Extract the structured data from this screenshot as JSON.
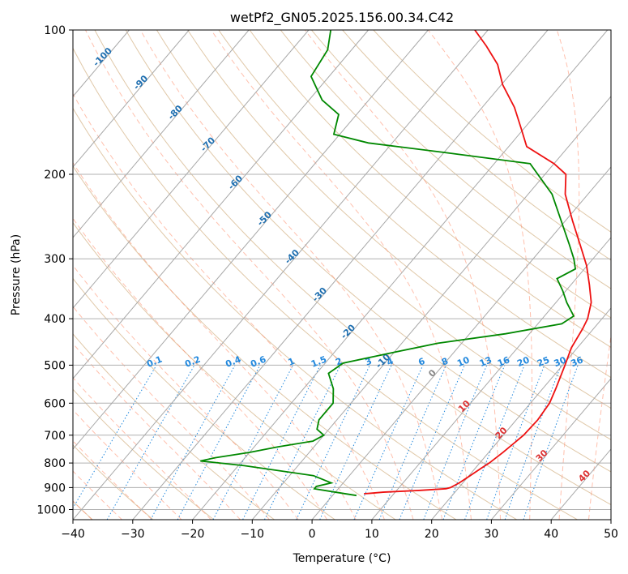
{
  "chart_data": {
    "type": "skew-t log-p",
    "title": "wetPf2_GN05.2025.156.00.34.C42",
    "xlabel": "Temperature (°C)",
    "ylabel": "Pressure (hPa)",
    "xlim": [
      -40,
      50
    ],
    "ylim_hpa": [
      1050,
      100
    ],
    "y_scale": "log",
    "grid": true,
    "x_ticks": [
      "−40",
      "−30",
      "−20",
      "−10",
      "0",
      "10",
      "20",
      "30",
      "40",
      "50"
    ],
    "y_ticks": [
      "100",
      "200",
      "300",
      "400",
      "500",
      "600",
      "700",
      "800",
      "900",
      "1000"
    ],
    "temperature": {
      "color": "#ee1111",
      "points": [
        [
          927,
          5
        ],
        [
          925,
          6
        ],
        [
          920,
          8
        ],
        [
          912,
          14
        ],
        [
          905,
          18
        ],
        [
          900,
          18.6
        ],
        [
          880,
          19.4
        ],
        [
          850,
          20.2
        ],
        [
          820,
          21
        ],
        [
          800,
          21.6
        ],
        [
          760,
          22.4
        ],
        [
          700,
          23.4
        ],
        [
          650,
          23.6
        ],
        [
          600,
          23.2
        ],
        [
          560,
          22.2
        ],
        [
          500,
          20.4
        ],
        [
          460,
          19
        ],
        [
          420,
          18.2
        ],
        [
          400,
          17.6
        ],
        [
          370,
          15.9
        ],
        [
          340,
          13.1
        ],
        [
          310,
          9.9
        ],
        [
          280,
          5.8
        ],
        [
          250,
          1.2
        ],
        [
          220,
          -3.8
        ],
        [
          200,
          -6.5
        ],
        [
          190,
          -10
        ],
        [
          175,
          -17
        ],
        [
          160,
          -20.6
        ],
        [
          145,
          -24.6
        ],
        [
          130,
          -29.8
        ],
        [
          118,
          -33.5
        ],
        [
          108,
          -38
        ],
        [
          100,
          -42.2
        ]
      ]
    },
    "dewpoint": {
      "color": "#008800",
      "points": [
        [
          935,
          4
        ],
        [
          920,
          0
        ],
        [
          905,
          -4
        ],
        [
          895,
          -4
        ],
        [
          880,
          -2
        ],
        [
          850,
          -6
        ],
        [
          810,
          -19
        ],
        [
          792,
          -27
        ],
        [
          780,
          -25
        ],
        [
          760,
          -20
        ],
        [
          740,
          -16
        ],
        [
          720,
          -11
        ],
        [
          700,
          -10
        ],
        [
          680,
          -12
        ],
        [
          650,
          -13
        ],
        [
          600,
          -13
        ],
        [
          560,
          -15
        ],
        [
          520,
          -18
        ],
        [
          495,
          -17
        ],
        [
          470,
          -10
        ],
        [
          450,
          -4
        ],
        [
          430,
          6
        ],
        [
          410,
          14
        ],
        [
          395,
          14.9
        ],
        [
          370,
          11.8
        ],
        [
          350,
          9.5
        ],
        [
          330,
          6.8
        ],
        [
          315,
          8.5
        ],
        [
          300,
          6.8
        ],
        [
          280,
          4
        ],
        [
          250,
          -0.7
        ],
        [
          220,
          -6
        ],
        [
          190,
          -14
        ],
        [
          180,
          -30
        ],
        [
          172,
          -44
        ],
        [
          165,
          -51
        ],
        [
          150,
          -53
        ],
        [
          140,
          -57.8
        ],
        [
          125,
          -63
        ],
        [
          110,
          -64
        ],
        [
          100,
          -66.3
        ]
      ]
    },
    "dry_adiabats": {
      "color": "#e0c8a8",
      "theta_values_c": [
        -40,
        -30,
        -20,
        -10,
        0,
        10,
        20,
        30,
        40,
        50,
        60,
        70,
        80,
        90,
        100,
        110,
        120,
        130,
        140
      ]
    },
    "moist_adiabats": {
      "color": "#ff8c6a",
      "start_temps_c_at_1000hpa": [
        -40,
        -35,
        -30,
        -25,
        -20,
        -15,
        -10,
        -5,
        0,
        5,
        10,
        15,
        20,
        25,
        30,
        35,
        40,
        45
      ]
    },
    "temperature_adiabat_labels": {
      "color": "#1f6fb0",
      "labels": [
        "-100",
        "-90",
        "-80",
        "-70",
        "-60",
        "-50",
        "-40",
        "-30",
        "-20",
        "-10"
      ]
    },
    "mixing_ratio_lines": {
      "color": "#2288dd",
      "values_g_per_kg": [
        0.1,
        0.2,
        0.4,
        0.6,
        1,
        1.5,
        2,
        3,
        4,
        6,
        8,
        10,
        13,
        16,
        20,
        25,
        30,
        36
      ],
      "labels": [
        "0.1",
        "0.2",
        "0.4",
        "0.6",
        "1",
        "1.5",
        "2",
        "3",
        "4",
        "6",
        "8",
        "10",
        "13",
        "16",
        "20",
        "25",
        "30",
        "36"
      ]
    },
    "moist_labels": {
      "color": "#dd3333",
      "labels": [
        "0",
        "10",
        "20",
        "30",
        "40"
      ]
    }
  }
}
